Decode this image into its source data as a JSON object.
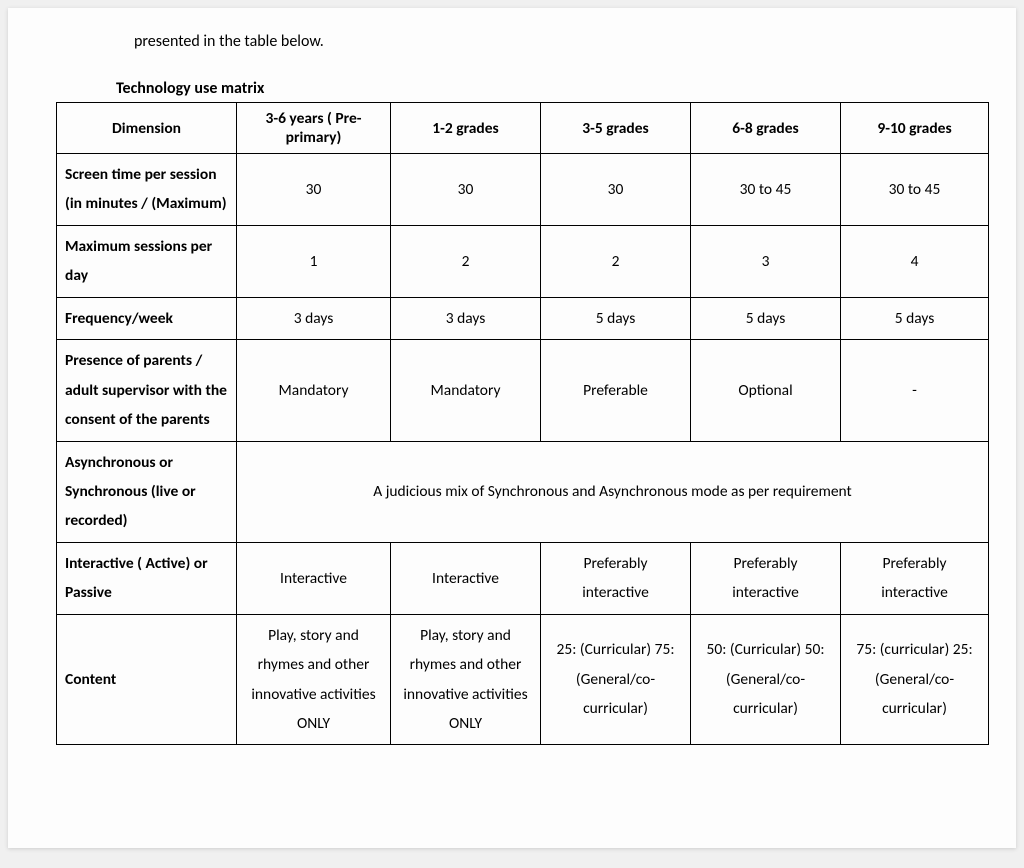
{
  "intro_text": "presented in the table below.",
  "caption": "Technology use matrix",
  "columns": [
    "Dimension",
    "3-6 years ( Pre-primary)",
    "1-2 grades",
    "3-5 grades",
    "6-8 grades",
    "9-10 grades"
  ],
  "rows": {
    "r0": {
      "label": "Screen time per session (in minutes / (Maximum)",
      "cells": [
        "30",
        "30",
        "30",
        "30 to 45",
        "30 to 45"
      ]
    },
    "r1": {
      "label": "Maximum sessions per day",
      "cells": [
        "1",
        "2",
        "2",
        "3",
        "4"
      ]
    },
    "r2": {
      "label": "Frequency/week",
      "cells": [
        "3 days",
        "3 days",
        "5 days",
        "5 days",
        "5 days"
      ]
    },
    "r3": {
      "label": "Presence of parents / adult supervisor with the consent of the parents",
      "cells": [
        "Mandatory",
        "Mandatory",
        "Preferable",
        "Optional",
        "-"
      ]
    },
    "r4": {
      "label": "Asynchronous or Synchronous (live or recorded)",
      "merged": "A judicious mix of Synchronous and Asynchronous mode as per requirement"
    },
    "r5": {
      "label": "Interactive ( Active) or Passive",
      "cells": [
        "Interactive",
        "Interactive",
        "Preferably interactive",
        "Preferably interactive",
        "Preferably interactive"
      ]
    },
    "r6": {
      "label": "Content",
      "cells": [
        "Play, story and rhymes and other innovative activities ONLY",
        "Play, story and rhymes and other innovative activities ONLY",
        "25: (Curricular) 75: (General/co-curricular)",
        "50: (Curricular) 50: (General/co-curricular)",
        "75: (curricular) 25: (General/co-curricular)"
      ]
    }
  }
}
